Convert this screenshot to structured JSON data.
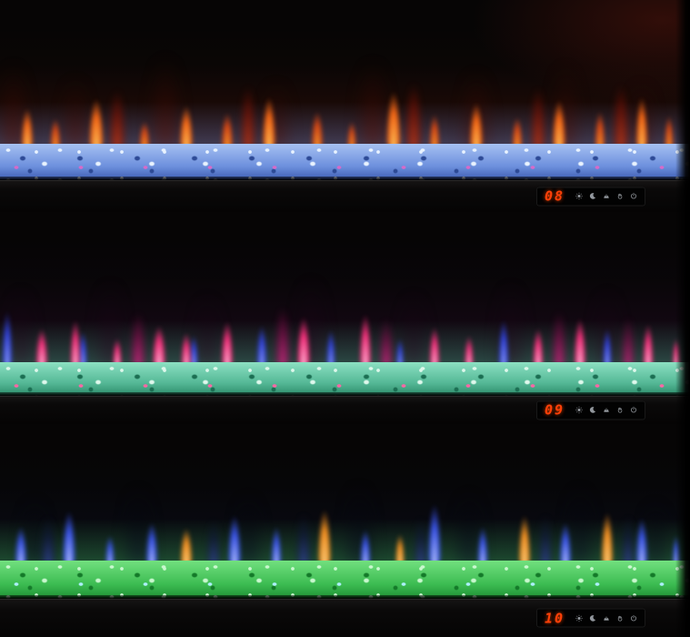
{
  "display": {
    "digit_color": "#ff4008",
    "icon_color": "#b7bdc4",
    "icons": [
      "brightness",
      "sleep-timer",
      "flame-effect",
      "hand",
      "power"
    ]
  },
  "units": [
    {
      "name": "top-fireplace",
      "display_value": "08",
      "colors": {
        "b1": "#a6c1f2",
        "b2": "#6d90dd",
        "b3": "#3d5cb2",
        "hi": "#e9f3ff",
        "dk": "#2d4a96",
        "sp": "#d86ac8",
        "glow": "rgba(115,155,240,0.55)"
      },
      "flames": [
        [
          2,
          34,
          118,
          "#8c2010",
          "#2e0803",
          0.55,
          9
        ],
        [
          11,
          30,
          98,
          "#8c2010",
          "#2e0803",
          0.55,
          9
        ],
        [
          24,
          36,
          128,
          "#8c2010",
          "#2e0803",
          0.55,
          9
        ],
        [
          40,
          30,
          92,
          "#8c2010",
          "#2e0803",
          0.55,
          9
        ],
        [
          54,
          38,
          122,
          "#8c2010",
          "#2e0803",
          0.55,
          9
        ],
        [
          69,
          34,
          108,
          "#8c2010",
          "#2e0803",
          0.55,
          9
        ],
        [
          82,
          30,
          118,
          "#8c2010",
          "#2e0803",
          0.55,
          9
        ],
        [
          93,
          30,
          92,
          "#8c2010",
          "#2e0803",
          0.55,
          9
        ],
        [
          17,
          22,
          82,
          "#e24418",
          "#6e1004",
          0.8,
          4
        ],
        [
          36,
          20,
          88,
          "#e24418",
          "#6e1004",
          0.8,
          4
        ],
        [
          60,
          22,
          92,
          "#e24418",
          "#6e1004",
          0.8,
          4
        ],
        [
          78,
          20,
          86,
          "#e24418",
          "#6e1004",
          0.8,
          4
        ],
        [
          90,
          22,
          90,
          "#e24418",
          "#6e1004",
          0.8,
          4
        ],
        [
          4,
          16,
          56,
          "#ffd063",
          "#ff6a14",
          0.95,
          2.5
        ],
        [
          8,
          14,
          42,
          "#ffb030",
          "#e84a10",
          0.9,
          2.5
        ],
        [
          14,
          20,
          70,
          "#ffd063",
          "#ff6a14",
          0.95,
          2.5
        ],
        [
          21,
          14,
          38,
          "#ffb030",
          "#e84a10",
          0.9,
          2.5
        ],
        [
          27,
          18,
          60,
          "#ffd063",
          "#ff6a14",
          0.95,
          2.5
        ],
        [
          33,
          16,
          50,
          "#ffb030",
          "#e84a10",
          0.9,
          2.5
        ],
        [
          39,
          18,
          72,
          "#ffd063",
          "#ff6a14",
          0.95,
          2.5
        ],
        [
          46,
          16,
          52,
          "#ffb030",
          "#e84a10",
          0.9,
          2.5
        ],
        [
          51,
          12,
          38,
          "#ffb030",
          "#e84a10",
          0.9,
          2.5
        ],
        [
          57,
          20,
          80,
          "#ffd063",
          "#ff6a14",
          0.95,
          2.5
        ],
        [
          63,
          14,
          48,
          "#ffb030",
          "#e84a10",
          0.9,
          2.5
        ],
        [
          69,
          18,
          64,
          "#ffd063",
          "#ff6a14",
          0.95,
          2.5
        ],
        [
          75,
          14,
          44,
          "#ffb030",
          "#e84a10",
          0.9,
          2.5
        ],
        [
          81,
          18,
          68,
          "#ffd063",
          "#ff6a14",
          0.95,
          2.5
        ],
        [
          87,
          14,
          52,
          "#ffb030",
          "#e84a10",
          0.9,
          2.5
        ],
        [
          93,
          16,
          72,
          "#ffd063",
          "#ff6a14",
          0.95,
          2.5
        ],
        [
          97,
          12,
          46,
          "#ffb030",
          "#e84a10",
          0.9,
          2.5
        ]
      ]
    },
    {
      "name": "middle-fireplace",
      "display_value": "09",
      "colors": {
        "b1": "#8ce0c2",
        "b2": "#54b896",
        "b3": "#2b8a68",
        "hi": "#def8ec",
        "dk": "#1b6e52",
        "sp": "#ff66a6",
        "glow": "rgba(85,220,170,0.5)"
      },
      "flames": [
        [
          3,
          30,
          108,
          "#4a1238",
          "#160514",
          0.5,
          9
        ],
        [
          16,
          32,
          118,
          "#4a1238",
          "#160514",
          0.5,
          9
        ],
        [
          30,
          30,
          98,
          "#4a1238",
          "#160514",
          0.5,
          9
        ],
        [
          45,
          34,
          122,
          "#4a1238",
          "#160514",
          0.5,
          9
        ],
        [
          60,
          30,
          102,
          "#4a1238",
          "#160514",
          0.5,
          9
        ],
        [
          74,
          32,
          115,
          "#4a1238",
          "#160514",
          0.5,
          9
        ],
        [
          88,
          30,
          106,
          "#4a1238",
          "#160514",
          0.5,
          9
        ],
        [
          20,
          20,
          76,
          "#ff35a0",
          "#6e0a40",
          0.85,
          4
        ],
        [
          41,
          20,
          84,
          "#ff35a0",
          "#6e0a40",
          0.85,
          4
        ],
        [
          56,
          18,
          68,
          "#ff35a0",
          "#6e0a40",
          0.85,
          4
        ],
        [
          81,
          18,
          78,
          "#ff35a0",
          "#6e0a40",
          0.85,
          4
        ],
        [
          91,
          16,
          70,
          "#ff35a0",
          "#6e0a40",
          0.85,
          4
        ],
        [
          1,
          14,
          78,
          "#9fb0ff",
          "#3142e0",
          0.95,
          2.5
        ],
        [
          12,
          12,
          50,
          "#9fb0ff",
          "#3142e0",
          0.95,
          2.5
        ],
        [
          28,
          12,
          44,
          "#9fb0ff",
          "#3142e0",
          0.95,
          2.5
        ],
        [
          38,
          14,
          58,
          "#9fb0ff",
          "#3142e0",
          0.95,
          2.5
        ],
        [
          48,
          12,
          52,
          "#9fb0ff",
          "#3142e0",
          0.95,
          2.5
        ],
        [
          58,
          10,
          40,
          "#9fb0ff",
          "#3142e0",
          0.95,
          2.5
        ],
        [
          73,
          14,
          66,
          "#9fb0ff",
          "#3142e0",
          0.95,
          2.5
        ],
        [
          88,
          12,
          54,
          "#9fb0ff",
          "#3142e0",
          0.95,
          2.5
        ],
        [
          6,
          16,
          54,
          "#ffd2e8",
          "#ff2f7e",
          0.95,
          2.5
        ],
        [
          11,
          14,
          66,
          "#ffd2e8",
          "#ff2f7e",
          0.95,
          2.5
        ],
        [
          17,
          12,
          40,
          "#ffd2e8",
          "#ff2f7e",
          0.95,
          2.5
        ],
        [
          23,
          18,
          58,
          "#ffd2e8",
          "#ff2f7e",
          0.95,
          2.5
        ],
        [
          27,
          14,
          48,
          "#ffd2e8",
          "#ff2f7e",
          0.95,
          2.5
        ],
        [
          33,
          16,
          64,
          "#ffd2e8",
          "#ff2f7e",
          0.95,
          2.5
        ],
        [
          44,
          18,
          70,
          "#ffd2e8",
          "#ff2f7e",
          0.95,
          2.5
        ],
        [
          53,
          16,
          74,
          "#ffd2e8",
          "#ff2f7e",
          0.95,
          2.5
        ],
        [
          63,
          14,
          56,
          "#ffd2e8",
          "#ff2f7e",
          0.95,
          2.5
        ],
        [
          68,
          12,
          44,
          "#ffd2e8",
          "#ff2f7e",
          0.95,
          2.5
        ],
        [
          78,
          14,
          54,
          "#ffd2e8",
          "#ff2f7e",
          0.95,
          2.5
        ],
        [
          84,
          16,
          68,
          "#ffd2e8",
          "#ff2f7e",
          0.95,
          2.5
        ],
        [
          94,
          14,
          60,
          "#ffd2e8",
          "#ff2f7e",
          0.95,
          2.5
        ],
        [
          98,
          10,
          40,
          "#ffd2e8",
          "#ff2f7e",
          0.95,
          2.5
        ]
      ]
    },
    {
      "name": "bottom-fireplace",
      "display_value": "10",
      "colors": {
        "b1": "#72e07f",
        "b2": "#3cbc52",
        "b3": "#1f8f33",
        "hi": "#c9f8cf",
        "dk": "#147a29",
        "sp": "#aef0ff",
        "glow": "rgba(75,220,105,0.5)"
      },
      "flames": [
        [
          5,
          30,
          92,
          "#141d42",
          "#04060d",
          0.6,
          9
        ],
        [
          20,
          32,
          108,
          "#141d42",
          "#04060d",
          0.6,
          9
        ],
        [
          36,
          30,
          98,
          "#141d42",
          "#04060d",
          0.6,
          9
        ],
        [
          52,
          34,
          112,
          "#141d42",
          "#04060d",
          0.6,
          9
        ],
        [
          68,
          30,
          102,
          "#141d42",
          "#04060d",
          0.6,
          9
        ],
        [
          84,
          32,
          110,
          "#141d42",
          "#04060d",
          0.6,
          9
        ],
        [
          95,
          26,
          88,
          "#141d42",
          "#04060d",
          0.6,
          9
        ],
        [
          7,
          20,
          68,
          "#4457d0",
          "#0f1638",
          0.8,
          4
        ],
        [
          31,
          18,
          64,
          "#4457d0",
          "#0f1638",
          0.8,
          4
        ],
        [
          44,
          20,
          72,
          "#4457d0",
          "#0f1638",
          0.8,
          4
        ],
        [
          61,
          18,
          66,
          "#4457d0",
          "#0f1638",
          0.8,
          4
        ],
        [
          79,
          18,
          70,
          "#4457d0",
          "#0f1638",
          0.8,
          4
        ],
        [
          91,
          18,
          68,
          "#4457d0",
          "#0f1638",
          0.8,
          4
        ],
        [
          3,
          16,
          54,
          "#c9d4ff",
          "#3b55f0",
          0.95,
          2.5
        ],
        [
          10,
          18,
          76,
          "#c9d4ff",
          "#3b55f0",
          0.95,
          2.5
        ],
        [
          16,
          12,
          42,
          "#c9d4ff",
          "#3b55f0",
          0.95,
          2.5
        ],
        [
          22,
          16,
          60,
          "#c9d4ff",
          "#3b55f0",
          0.95,
          2.5
        ],
        [
          34,
          18,
          70,
          "#c9d4ff",
          "#3b55f0",
          0.95,
          2.5
        ],
        [
          40,
          14,
          54,
          "#c9d4ff",
          "#3b55f0",
          0.95,
          2.5
        ],
        [
          53,
          14,
          50,
          "#c9d4ff",
          "#3b55f0",
          0.95,
          2.5
        ],
        [
          63,
          18,
          86,
          "#c9d4ff",
          "#3b55f0",
          0.95,
          2.5
        ],
        [
          70,
          14,
          54,
          "#c9d4ff",
          "#3b55f0",
          0.95,
          2.5
        ],
        [
          82,
          16,
          60,
          "#c9d4ff",
          "#3b55f0",
          0.95,
          2.5
        ],
        [
          93,
          16,
          66,
          "#c9d4ff",
          "#3b55f0",
          0.95,
          2.5
        ],
        [
          98,
          10,
          42,
          "#c9d4ff",
          "#3b55f0",
          0.95,
          2.5
        ],
        [
          27,
          16,
          52,
          "#ffd98c",
          "#ff9420",
          0.95,
          2.5
        ],
        [
          47,
          18,
          78,
          "#ffd98c",
          "#ff9420",
          0.95,
          2.5
        ],
        [
          58,
          12,
          44,
          "#ffd98c",
          "#ff9420",
          0.95,
          2.5
        ],
        [
          76,
          16,
          70,
          "#ffd98c",
          "#ff9420",
          0.95,
          2.5
        ],
        [
          88,
          16,
          74,
          "#ffd98c",
          "#ff9420",
          0.95,
          2.5
        ]
      ]
    }
  ]
}
